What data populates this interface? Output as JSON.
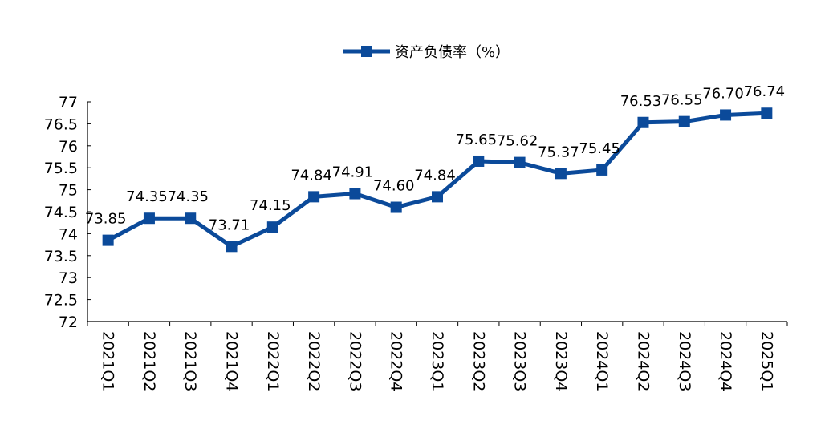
{
  "chart_data": {
    "type": "line",
    "categories": [
      "2021Q1",
      "2021Q2",
      "2021Q3",
      "2021Q4",
      "2022Q1",
      "2022Q2",
      "2022Q3",
      "2022Q4",
      "2023Q1",
      "2023Q2",
      "2023Q3",
      "2023Q4",
      "2024Q1",
      "2024Q2",
      "2024Q3",
      "2024Q4",
      "2025Q1"
    ],
    "series": [
      {
        "name": "资产负债率（%）",
        "values": [
          73.85,
          74.35,
          74.35,
          73.71,
          74.15,
          74.84,
          74.91,
          74.6,
          74.84,
          75.65,
          75.62,
          75.37,
          75.45,
          76.53,
          76.55,
          76.7,
          76.74
        ],
        "labels": [
          "73.85",
          "74.35",
          "74.35",
          "73.71",
          "74.15",
          "74.84",
          "74.91",
          "74.60",
          "74.84",
          "75.65",
          "75.62",
          "75.37",
          "75.45",
          "76.53",
          "76.55",
          "76.70",
          "76.74"
        ]
      }
    ],
    "ylim": [
      72,
      77
    ],
    "yticks": [
      "72",
      "72.5",
      "73",
      "73.5",
      "74",
      "74.5",
      "75",
      "75.5",
      "76",
      "76.5",
      "77"
    ],
    "grid": false,
    "legend_position": "top-center",
    "series_color": "#0b4a9a",
    "marker": "square"
  }
}
